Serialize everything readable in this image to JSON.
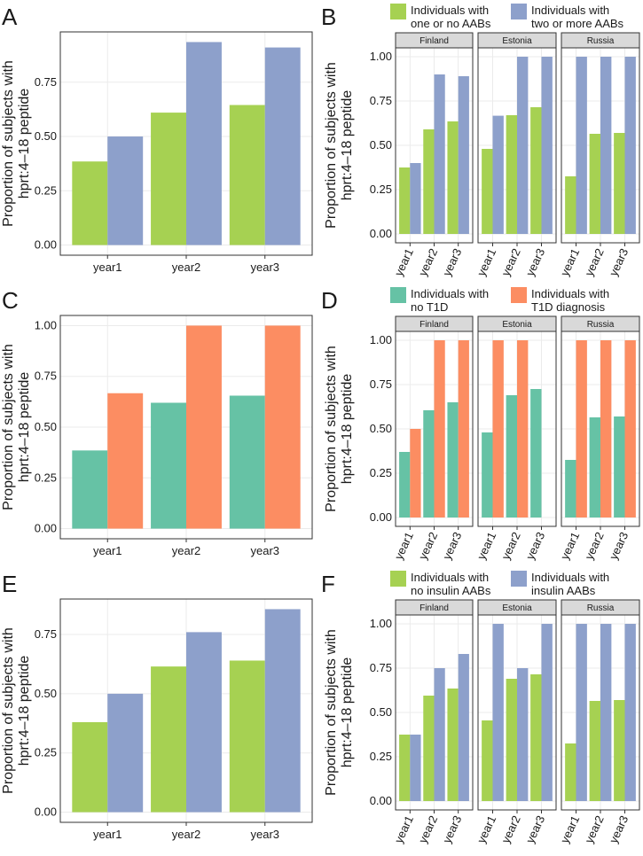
{
  "chart_data": [
    {
      "panel": "A",
      "type": "bar",
      "categories": [
        "year1",
        "year2",
        "year3"
      ],
      "ylabel": "Proportion of subjects with hprt:4–18 peptide",
      "yticks": [
        "0.00",
        "0.25",
        "0.50",
        "0.75"
      ],
      "ylim": [
        0,
        0.935
      ],
      "grid": true,
      "series": [
        {
          "name": "Individuals with one or no AABs",
          "color": "#a6d152",
          "values": [
            0.385,
            0.61,
            0.645
          ]
        },
        {
          "name": "Individuals with two or more AABs",
          "color": "#8da0cb",
          "values": [
            0.5,
            0.935,
            0.91
          ]
        }
      ]
    },
    {
      "panel": "B",
      "type": "bar",
      "faceted": true,
      "facets": [
        "Finland",
        "Estonia",
        "Russia"
      ],
      "categories": [
        "year1",
        "year2",
        "year3"
      ],
      "ylabel": "Proportion of subjects with hprt:4–18 peptide",
      "yticks": [
        "0.00",
        "0.25",
        "0.50",
        "0.75",
        "1.00"
      ],
      "ylim": [
        0,
        1
      ],
      "grid": true,
      "legend": "top",
      "series": [
        {
          "name": "Individuals with one or no AABs",
          "color": "#a6d152",
          "values": [
            [
              0.375,
              0.59,
              0.635
            ],
            [
              0.48,
              0.67,
              0.715
            ],
            [
              0.325,
              0.565,
              0.57
            ]
          ]
        },
        {
          "name": "Individuals with two or more AABs",
          "color": "#8da0cb",
          "values": [
            [
              0.4,
              0.9,
              0.89
            ],
            [
              0.667,
              1,
              1
            ],
            [
              1,
              1,
              1
            ]
          ]
        }
      ]
    },
    {
      "panel": "C",
      "type": "bar",
      "categories": [
        "year1",
        "year2",
        "year3"
      ],
      "ylabel": "Proportion of subjects with hprt:4–18 peptide",
      "yticks": [
        "0.00",
        "0.25",
        "0.50",
        "0.75",
        "1.00"
      ],
      "ylim": [
        0,
        1
      ],
      "grid": true,
      "series": [
        {
          "name": "Individuals with no T1D",
          "color": "#66c2a5",
          "values": [
            0.385,
            0.62,
            0.655
          ]
        },
        {
          "name": "Individuals with T1D diagnosis",
          "color": "#fc8d62",
          "values": [
            0.667,
            1,
            1
          ]
        }
      ]
    },
    {
      "panel": "D",
      "type": "bar",
      "faceted": true,
      "facets": [
        "Finland",
        "Estonia",
        "Russia"
      ],
      "categories": [
        "year1",
        "year2",
        "year3"
      ],
      "ylabel": "Proportion of subjects with hprt:4–18 peptide",
      "yticks": [
        "0.00",
        "0.25",
        "0.50",
        "0.75",
        "1.00"
      ],
      "ylim": [
        0,
        1
      ],
      "grid": true,
      "legend": "top",
      "series": [
        {
          "name": "Individuals with no T1D",
          "color": "#66c2a5",
          "values": [
            [
              0.37,
              0.605,
              0.65
            ],
            [
              0.48,
              0.69,
              0.725
            ],
            [
              0.325,
              0.565,
              0.57
            ]
          ]
        },
        {
          "name": "Individuals with T1D diagnosis",
          "color": "#fc8d62",
          "values": [
            [
              0.5,
              1,
              1
            ],
            [
              1,
              1,
              null
            ],
            [
              1,
              1,
              1
            ]
          ]
        }
      ]
    },
    {
      "panel": "E",
      "type": "bar",
      "categories": [
        "year1",
        "year2",
        "year3"
      ],
      "ylabel": "Proportion of subjects with hprt:4–18 peptide",
      "yticks": [
        "0.00",
        "0.25",
        "0.50",
        "0.75"
      ],
      "ylim": [
        0,
        0.857
      ],
      "grid": true,
      "series": [
        {
          "name": "Individuals with no insulin AABs",
          "color": "#a6d152",
          "values": [
            0.38,
            0.615,
            0.64
          ]
        },
        {
          "name": "Individuals with insulin AABs",
          "color": "#8da0cb",
          "values": [
            0.5,
            0.76,
            0.857
          ]
        }
      ]
    },
    {
      "panel": "F",
      "type": "bar",
      "faceted": true,
      "facets": [
        "Finland",
        "Estonia",
        "Russia"
      ],
      "categories": [
        "year1",
        "year2",
        "year3"
      ],
      "ylabel": "Proportion of subjects with hprt:4–18 peptide",
      "yticks": [
        "0.00",
        "0.25",
        "0.50",
        "0.75",
        "1.00"
      ],
      "ylim": [
        0,
        1
      ],
      "grid": true,
      "legend": "top",
      "series": [
        {
          "name": "Individuals with no insulin AABs",
          "color": "#a6d152",
          "values": [
            [
              0.375,
              0.595,
              0.635
            ],
            [
              0.455,
              0.69,
              0.715
            ],
            [
              0.325,
              0.565,
              0.57
            ]
          ]
        },
        {
          "name": "Individuals with insulin AABs",
          "color": "#8da0cb",
          "values": [
            [
              0.375,
              0.75,
              0.83
            ],
            [
              1,
              0.75,
              1
            ],
            [
              1,
              1,
              1
            ]
          ]
        }
      ]
    }
  ]
}
